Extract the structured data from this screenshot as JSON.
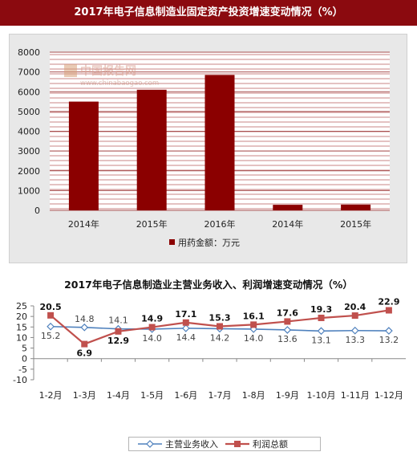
{
  "banner": {
    "title": "2017年电子信息制造业固定资产投资增速变动情况（%）"
  },
  "watermark": {
    "name": "中国报告网",
    "url": "www.chinabaogao.com"
  },
  "chart_data": [
    {
      "type": "bar",
      "categories": [
        "2014年",
        "2015年",
        "2016年",
        "2014年",
        "2015年"
      ],
      "series": [
        {
          "name": "用药金额：万元",
          "values": [
            5500,
            6100,
            6850,
            280,
            290
          ]
        }
      ],
      "ylim": [
        0,
        8000
      ],
      "yticks": [
        0,
        1000,
        2000,
        3000,
        4000,
        5000,
        6000,
        7000,
        8000
      ],
      "legend": "bottom",
      "grid": true,
      "colors": {
        "bar": "#8b0000",
        "grid": "#c98585",
        "plot_bg": "#ffffff",
        "panel_bg": "#e8e8e8"
      }
    },
    {
      "type": "line",
      "title": "2017年电子信息制造业主营业务收入、利润增速变动情况（%）",
      "categories": [
        "1-2月",
        "1-3月",
        "1-4月",
        "1-5月",
        "1-6月",
        "1-7月",
        "1-8月",
        "1-9月",
        "1-10月",
        "1-11月",
        "1-12月"
      ],
      "series": [
        {
          "name": "主营业务收入",
          "values": [
            15.2,
            14.8,
            14.1,
            14.0,
            14.4,
            14.2,
            14.0,
            13.6,
            13.1,
            13.3,
            13.2
          ]
        },
        {
          "name": "利润总额",
          "values": [
            20.5,
            6.9,
            12.9,
            14.9,
            17.1,
            15.3,
            16.1,
            17.6,
            19.3,
            20.4,
            22.9
          ]
        }
      ],
      "ylim": [
        -10,
        25
      ],
      "yticks": [
        -10,
        -5,
        0,
        5,
        10,
        15,
        20,
        25
      ],
      "legend": "bottom",
      "grid": false,
      "colors": {
        "series1": "#4f81bd",
        "series2": "#c0504d"
      }
    }
  ]
}
